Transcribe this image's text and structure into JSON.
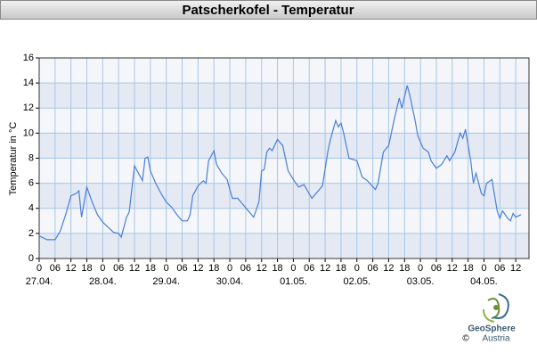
{
  "chart_data": {
    "type": "line",
    "title": "Patscherkofel - Temperatur",
    "ylabel": "Temperatur in °C",
    "xlim": [
      0,
      185
    ],
    "ylim": [
      0,
      16
    ],
    "yticks": [
      0,
      2,
      4,
      6,
      8,
      10,
      12,
      14,
      16
    ],
    "xticks": [
      {
        "value": 0,
        "label": "0"
      },
      {
        "value": 6,
        "label": "06"
      },
      {
        "value": 12,
        "label": "12"
      },
      {
        "value": 18,
        "label": "18"
      },
      {
        "value": 24,
        "label": "0"
      },
      {
        "value": 30,
        "label": "06"
      },
      {
        "value": 36,
        "label": "12"
      },
      {
        "value": 42,
        "label": "18"
      },
      {
        "value": 48,
        "label": "0"
      },
      {
        "value": 54,
        "label": "06"
      },
      {
        "value": 60,
        "label": "12"
      },
      {
        "value": 66,
        "label": "18"
      },
      {
        "value": 72,
        "label": "0"
      },
      {
        "value": 78,
        "label": "06"
      },
      {
        "value": 84,
        "label": "12"
      },
      {
        "value": 90,
        "label": "18"
      },
      {
        "value": 96,
        "label": "0"
      },
      {
        "value": 102,
        "label": "06"
      },
      {
        "value": 108,
        "label": "12"
      },
      {
        "value": 114,
        "label": "18"
      },
      {
        "value": 120,
        "label": "0"
      },
      {
        "value": 126,
        "label": "06"
      },
      {
        "value": 132,
        "label": "12"
      },
      {
        "value": 138,
        "label": "18"
      },
      {
        "value": 144,
        "label": "0"
      },
      {
        "value": 150,
        "label": "06"
      },
      {
        "value": 156,
        "label": "12"
      },
      {
        "value": 162,
        "label": "18"
      },
      {
        "value": 168,
        "label": "0"
      },
      {
        "value": 174,
        "label": "06"
      },
      {
        "value": 180,
        "label": "12"
      }
    ],
    "x_day_labels": [
      {
        "value": 0,
        "label": "27.04."
      },
      {
        "value": 24,
        "label": "28.04."
      },
      {
        "value": 48,
        "label": "29.04."
      },
      {
        "value": 72,
        "label": "30.04."
      },
      {
        "value": 96,
        "label": "01.05."
      },
      {
        "value": 120,
        "label": "02.05."
      },
      {
        "value": 144,
        "label": "03.05."
      },
      {
        "value": 168,
        "label": "04.05."
      }
    ],
    "grid": true,
    "series": [
      {
        "color": "#4a7fd6",
        "x": [
          0,
          3,
          6,
          8,
          10,
          12,
          14,
          15,
          16,
          18,
          20,
          22,
          24,
          26,
          28,
          30,
          31,
          33,
          34,
          36,
          37,
          39,
          40,
          41,
          42,
          44,
          46,
          48,
          50,
          52,
          54,
          56,
          57,
          58,
          60,
          62,
          63,
          64,
          66,
          67,
          69,
          71,
          72,
          73,
          75,
          77,
          79,
          81,
          83,
          84,
          85,
          86,
          87,
          88,
          90,
          92,
          94,
          96,
          98,
          100,
          103,
          105,
          107,
          109,
          110,
          112,
          113,
          114,
          115,
          117,
          120,
          122,
          124,
          127,
          128,
          130,
          132,
          134,
          136,
          137,
          139,
          140,
          142,
          143,
          145,
          147,
          148,
          150,
          152,
          154,
          155,
          157,
          159,
          160,
          161,
          163,
          164,
          165,
          167,
          168,
          169,
          171,
          173,
          174,
          175,
          177,
          178,
          179,
          180,
          182
        ],
        "values": [
          1.8,
          1.5,
          1.5,
          2.2,
          3.5,
          5.0,
          5.2,
          5.4,
          3.3,
          5.7,
          4.5,
          3.5,
          2.9,
          2.5,
          2.1,
          2.0,
          1.7,
          3.3,
          3.7,
          7.4,
          7.0,
          6.2,
          8.0,
          8.1,
          7.0,
          6.0,
          5.2,
          4.5,
          4.1,
          3.5,
          3.0,
          3.0,
          3.5,
          5.0,
          5.8,
          6.2,
          6.0,
          7.8,
          8.6,
          7.5,
          6.8,
          6.3,
          5.5,
          4.8,
          4.8,
          4.3,
          3.8,
          3.3,
          4.5,
          7.0,
          7.1,
          8.5,
          8.8,
          8.6,
          9.5,
          9.0,
          7.0,
          6.3,
          5.7,
          5.9,
          4.8,
          5.3,
          5.8,
          8.5,
          9.5,
          11.0,
          10.5,
          10.8,
          10.0,
          8.0,
          7.8,
          6.5,
          6.2,
          5.5,
          6.0,
          8.5,
          9.0,
          11.0,
          12.8,
          12.0,
          13.8,
          13.0,
          11.0,
          9.8,
          8.8,
          8.5,
          7.8,
          7.2,
          7.5,
          8.2,
          7.8,
          8.5,
          10.0,
          9.6,
          10.3,
          7.8,
          6.0,
          6.8,
          5.2,
          5.0,
          6.0,
          6.3,
          3.8,
          3.2,
          3.8,
          3.2,
          3.0,
          3.6,
          3.3,
          3.5
        ]
      }
    ]
  },
  "logo": {
    "name": "GeoSphere",
    "sub": "Austria",
    "copyright": "©"
  }
}
